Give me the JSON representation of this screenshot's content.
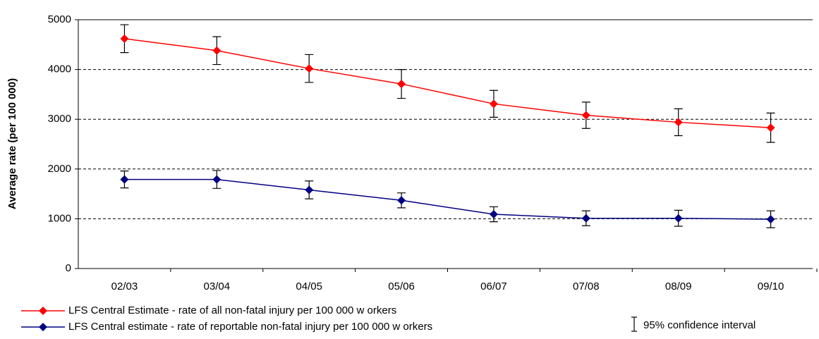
{
  "chart_data": {
    "type": "line",
    "y_label": "Average rate (per 100 000)",
    "categories": [
      "02/03",
      "03/04",
      "04/05",
      "05/06",
      "06/07",
      "07/08",
      "08/09",
      "09/10"
    ],
    "series": [
      {
        "name": "LFS Central Estimate - rate of all non-fatal injury per 100 000 w orkers",
        "color": "#ff0000",
        "values": [
          4620,
          4380,
          4020,
          3710,
          3310,
          3080,
          2940,
          2830
        ],
        "errors": [
          280,
          280,
          280,
          290,
          270,
          265,
          270,
          295
        ]
      },
      {
        "name": "LFS Central estimate - rate of reportable non-fatal injury per 100 000 w orkers",
        "color": "#000080",
        "values": [
          1790,
          1790,
          1580,
          1370,
          1090,
          1010,
          1010,
          990
        ],
        "errors": [
          170,
          180,
          180,
          150,
          150,
          150,
          160,
          170
        ]
      }
    ],
    "error_bar_label": "95% confidence interval",
    "ylim": [
      0,
      5000
    ],
    "yticks": [
      0,
      1000,
      2000,
      3000,
      4000,
      5000
    ],
    "grid": true
  }
}
